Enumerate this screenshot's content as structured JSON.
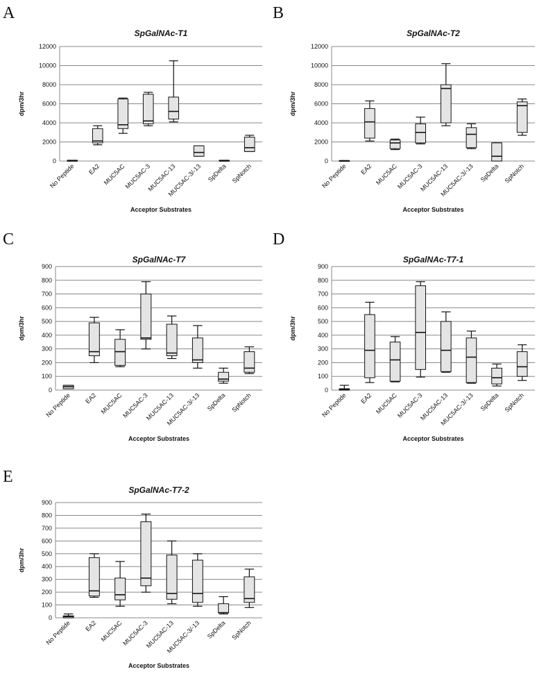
{
  "chart_data": [
    {
      "type": "boxplot",
      "panel_label": "A",
      "title": "SpGalNAc-T1",
      "ylabel": "dpm/3hr",
      "xlabel": "Acceptor Substrates",
      "ylim": [
        0,
        12000
      ],
      "yticks": [
        0,
        2000,
        4000,
        6000,
        8000,
        10000,
        12000
      ],
      "grid": true,
      "categories": [
        "No Peptide",
        "EA2",
        "MUC5AC",
        "MUC5AC-3",
        "MUC5AC-13",
        "MUC5AC-3/-13",
        "SpDelta",
        "SpNotch"
      ],
      "boxes": [
        {
          "min": 0,
          "q1": 0,
          "median": 0,
          "q3": 80,
          "max": 80
        },
        {
          "min": 1700,
          "q1": 1900,
          "median": 2100,
          "q3": 3400,
          "max": 3700
        },
        {
          "min": 2900,
          "q1": 3400,
          "median": 3800,
          "q3": 6500,
          "max": 6600
        },
        {
          "min": 3700,
          "q1": 3900,
          "median": 4200,
          "q3": 7000,
          "max": 7200
        },
        {
          "min": 4100,
          "q1": 4400,
          "median": 5200,
          "q3": 6700,
          "max": 10500
        },
        {
          "min": 500,
          "q1": 500,
          "median": 900,
          "q3": 1600,
          "max": 1600
        },
        {
          "min": 0,
          "q1": 0,
          "median": 0,
          "q3": 80,
          "max": 80
        },
        {
          "min": 1000,
          "q1": 1000,
          "median": 1400,
          "q3": 2500,
          "max": 2700
        }
      ]
    },
    {
      "type": "boxplot",
      "panel_label": "B",
      "title": "SpGalNAc-T2",
      "ylabel": "dpm/3hr",
      "xlabel": "Acceptor Substrates",
      "ylim": [
        0,
        12000
      ],
      "yticks": [
        0,
        2000,
        4000,
        6000,
        8000,
        10000,
        12000
      ],
      "grid": true,
      "categories": [
        "No Peptide",
        "EA2",
        "MUC5AC",
        "MUC5AC-3",
        "MUC5AC-13",
        "MUC5AC-3/-13",
        "SpDelta",
        "SpNotch"
      ],
      "boxes": [
        {
          "min": 0,
          "q1": 0,
          "median": 0,
          "q3": 50,
          "max": 50
        },
        {
          "min": 2100,
          "q1": 2400,
          "median": 4100,
          "q3": 5500,
          "max": 6300
        },
        {
          "min": 1200,
          "q1": 1300,
          "median": 1900,
          "q3": 2200,
          "max": 2300
        },
        {
          "min": 1800,
          "q1": 1900,
          "median": 3000,
          "q3": 3900,
          "max": 4600
        },
        {
          "min": 3700,
          "q1": 4000,
          "median": 7600,
          "q3": 8000,
          "max": 10200
        },
        {
          "min": 1300,
          "q1": 1400,
          "median": 2800,
          "q3": 3500,
          "max": 3900
        },
        {
          "min": 0,
          "q1": 0,
          "median": 500,
          "q3": 1900,
          "max": 1900
        },
        {
          "min": 2700,
          "q1": 3000,
          "median": 5800,
          "q3": 6200,
          "max": 6500
        }
      ]
    },
    {
      "type": "boxplot",
      "panel_label": "C",
      "title": "SpGalNAc-T7",
      "ylabel": "dpm/3hr",
      "xlabel": "Acceptor Substrates",
      "ylim": [
        0,
        900
      ],
      "yticks": [
        0,
        100,
        200,
        300,
        400,
        500,
        600,
        700,
        800,
        900
      ],
      "grid": true,
      "categories": [
        "No Peptide",
        "EA2",
        "MUC5AC",
        "MUC5AC-3",
        "MUC5AC-13",
        "MUC5AC-3/-13",
        "SpDelta",
        "SpNotch"
      ],
      "boxes": [
        {
          "min": 10,
          "q1": 10,
          "median": 25,
          "q3": 35,
          "max": 35
        },
        {
          "min": 200,
          "q1": 250,
          "median": 280,
          "q3": 490,
          "max": 530
        },
        {
          "min": 170,
          "q1": 180,
          "median": 280,
          "q3": 370,
          "max": 440
        },
        {
          "min": 300,
          "q1": 370,
          "median": 380,
          "q3": 700,
          "max": 790
        },
        {
          "min": 230,
          "q1": 250,
          "median": 270,
          "q3": 480,
          "max": 540
        },
        {
          "min": 160,
          "q1": 200,
          "median": 220,
          "q3": 380,
          "max": 470
        },
        {
          "min": 50,
          "q1": 65,
          "median": 80,
          "q3": 130,
          "max": 160
        },
        {
          "min": 120,
          "q1": 130,
          "median": 160,
          "q3": 280,
          "max": 315
        }
      ]
    },
    {
      "type": "boxplot",
      "panel_label": "D",
      "title": "SpGalNAc-T7-1",
      "ylabel": "dpm/3hr",
      "xlabel": "Acceptor Substrates",
      "ylim": [
        0,
        900
      ],
      "yticks": [
        0,
        100,
        200,
        300,
        400,
        500,
        600,
        700,
        800,
        900
      ],
      "grid": true,
      "categories": [
        "No Peptide",
        "EA2",
        "MUC5AC",
        "MUC5AC-3",
        "MUC5AC-13",
        "MUC5AC-3/-13",
        "SpDelta",
        "SpNotch"
      ],
      "boxes": [
        {
          "min": 0,
          "q1": 0,
          "median": 5,
          "q3": 10,
          "max": 35
        },
        {
          "min": 55,
          "q1": 90,
          "median": 290,
          "q3": 550,
          "max": 640
        },
        {
          "min": 60,
          "q1": 65,
          "median": 220,
          "q3": 350,
          "max": 390
        },
        {
          "min": 95,
          "q1": 150,
          "median": 420,
          "q3": 760,
          "max": 790
        },
        {
          "min": 130,
          "q1": 135,
          "median": 290,
          "q3": 500,
          "max": 570
        },
        {
          "min": 50,
          "q1": 55,
          "median": 240,
          "q3": 380,
          "max": 430
        },
        {
          "min": 30,
          "q1": 45,
          "median": 90,
          "q3": 160,
          "max": 190
        },
        {
          "min": 70,
          "q1": 100,
          "median": 170,
          "q3": 280,
          "max": 330
        }
      ]
    },
    {
      "type": "boxplot",
      "panel_label": "E",
      "title": "SpGalNAc-T7-2",
      "ylabel": "dpm/3hr",
      "xlabel": "Acceptor Substrates",
      "ylim": [
        0,
        900
      ],
      "yticks": [
        0,
        100,
        200,
        300,
        400,
        500,
        600,
        700,
        800,
        900
      ],
      "grid": true,
      "categories": [
        "No Peptide",
        "EA2",
        "MUC5AC",
        "MUC5AC-3",
        "MUC5AC-13",
        "MUC5AC-3/-13",
        "SpDelta",
        "SpNotch"
      ],
      "boxes": [
        {
          "min": 0,
          "q1": 0,
          "median": 10,
          "q3": 15,
          "max": 30
        },
        {
          "min": 160,
          "q1": 170,
          "median": 210,
          "q3": 470,
          "max": 500
        },
        {
          "min": 90,
          "q1": 140,
          "median": 180,
          "q3": 310,
          "max": 440
        },
        {
          "min": 200,
          "q1": 250,
          "median": 310,
          "q3": 750,
          "max": 810
        },
        {
          "min": 110,
          "q1": 145,
          "median": 190,
          "q3": 490,
          "max": 600
        },
        {
          "min": 90,
          "q1": 120,
          "median": 190,
          "q3": 450,
          "max": 500
        },
        {
          "min": 30,
          "q1": 40,
          "median": 40,
          "q3": 110,
          "max": 165
        },
        {
          "min": 80,
          "q1": 120,
          "median": 150,
          "q3": 320,
          "max": 380
        }
      ]
    }
  ],
  "colors": {
    "box_fill": "#e4e4e4",
    "box_stroke": "#111111",
    "grid": "#888888",
    "axis": "#888888",
    "text": "#111111"
  }
}
